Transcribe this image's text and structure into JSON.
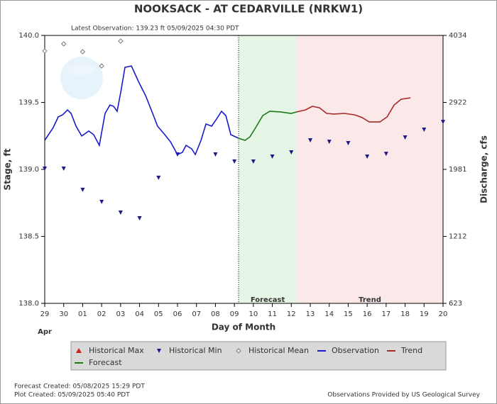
{
  "chart_data": {
    "type": "line",
    "title": "NOOKSACK - AT CEDARVILLE  (NRKW1)",
    "subtitle": "Latest Observation: 139.23 ft 05/09/2025 04:30 PDT",
    "xlabel": "Day of Month",
    "xlabel_month": "Apr",
    "ylabel": "Stage, ft",
    "y2label": "Discharge, cfs",
    "xlim": [
      0,
      21
    ],
    "xticks": [
      {
        "value": 0,
        "label": "29"
      },
      {
        "value": 1,
        "label": "30"
      },
      {
        "value": 2,
        "label": "01"
      },
      {
        "value": 3,
        "label": "02"
      },
      {
        "value": 4,
        "label": "03"
      },
      {
        "value": 5,
        "label": "04"
      },
      {
        "value": 6,
        "label": "05"
      },
      {
        "value": 7,
        "label": "06"
      },
      {
        "value": 8,
        "label": "07"
      },
      {
        "value": 9,
        "label": "08"
      },
      {
        "value": 10,
        "label": "09"
      },
      {
        "value": 11,
        "label": "10"
      },
      {
        "value": 12,
        "label": "11"
      },
      {
        "value": 13,
        "label": "12"
      },
      {
        "value": 14,
        "label": "13"
      },
      {
        "value": 15,
        "label": "14"
      },
      {
        "value": 16,
        "label": "15"
      },
      {
        "value": 17,
        "label": "16"
      },
      {
        "value": 18,
        "label": "17"
      },
      {
        "value": 19,
        "label": "18"
      },
      {
        "value": 20,
        "label": "19"
      },
      {
        "value": 21,
        "label": "20"
      }
    ],
    "ylim": [
      138,
      140
    ],
    "yticks": [
      {
        "value": 138,
        "label": "138.0"
      },
      {
        "value": 138.5,
        "label": "138.5"
      },
      {
        "value": 139,
        "label": "139.0"
      },
      {
        "value": 139.5,
        "label": "139.5"
      },
      {
        "value": 140,
        "label": "140.0"
      }
    ],
    "y2lim": [
      623,
      4034
    ],
    "y2ticks": [
      623,
      1212,
      1981,
      2922,
      4034
    ],
    "latest_x": 10.22,
    "regions": [
      {
        "label": "Forecast",
        "start": 10.22,
        "end": 13.29,
        "color": "#e6f6e6"
      },
      {
        "label": "Trend",
        "start": 13.29,
        "end": 21,
        "color": "#fbe9e9"
      }
    ],
    "series": [
      {
        "name": "Historical Max",
        "marker": "triangle-up",
        "color": "#cc2222",
        "x": [],
        "values": []
      },
      {
        "name": "Historical Min",
        "marker": "triangle-down",
        "color": "#1a1a8c",
        "x": [
          0,
          1,
          2,
          3,
          4,
          5,
          6,
          7,
          9,
          10,
          11,
          12,
          13,
          14,
          15,
          16,
          17,
          18,
          19,
          20,
          21
        ],
        "values": [
          139.005,
          139.005,
          138.847,
          138.757,
          138.677,
          138.635,
          138.937,
          139.111,
          139.111,
          139.058,
          139.058,
          139.095,
          139.127,
          139.217,
          139.206,
          139.196,
          139.095,
          139.116,
          139.238,
          139.296,
          139.354
        ]
      },
      {
        "name": "Historical Mean",
        "marker": "diamond",
        "color": "#777777",
        "x": [
          0,
          1,
          2,
          3,
          4
        ],
        "values": [
          139.884,
          139.937,
          139.878,
          139.772,
          139.958
        ]
      },
      {
        "name": "Observation",
        "marker": "line",
        "color": "#1a1acc",
        "x": [
          0,
          0.45,
          0.71,
          0.94,
          1.2,
          1.39,
          1.65,
          1.95,
          2.32,
          2.58,
          2.88,
          3.18,
          3.44,
          3.63,
          3.82,
          4.01,
          4.23,
          4.57,
          4.94,
          5.32,
          5.69,
          5.95,
          6.33,
          6.63,
          7.0,
          7.26,
          7.45,
          7.75,
          7.94,
          8.24,
          8.5,
          8.8,
          9.06,
          9.32,
          9.55,
          9.81,
          10.22
        ],
        "values": [
          139.217,
          139.312,
          139.392,
          139.407,
          139.444,
          139.418,
          139.323,
          139.249,
          139.286,
          139.259,
          139.18,
          139.418,
          139.481,
          139.471,
          139.434,
          139.577,
          139.762,
          139.772,
          139.656,
          139.55,
          139.418,
          139.323,
          139.259,
          139.206,
          139.111,
          139.127,
          139.18,
          139.153,
          139.111,
          139.217,
          139.339,
          139.323,
          139.376,
          139.434,
          139.402,
          139.259,
          139.233
        ]
      },
      {
        "name": "Trend",
        "marker": "line",
        "color": "#a52a2a",
        "x": [
          13.29,
          13.74,
          14.11,
          14.49,
          14.86,
          15.24,
          15.8,
          16.36,
          16.74,
          17.11,
          17.67,
          18.05,
          18.42,
          18.79,
          19.28
        ],
        "values": [
          139.429,
          139.444,
          139.471,
          139.46,
          139.418,
          139.413,
          139.418,
          139.407,
          139.386,
          139.354,
          139.354,
          139.392,
          139.481,
          139.524,
          139.534
        ]
      },
      {
        "name": "Forecast",
        "marker": "line",
        "color": "#1a7a1a",
        "x": [
          10.22,
          10.56,
          10.82,
          11.12,
          11.5,
          11.87,
          12.43,
          12.99,
          13.29
        ],
        "values": [
          139.233,
          139.217,
          139.243,
          139.312,
          139.402,
          139.434,
          139.429,
          139.418,
          139.429
        ]
      }
    ],
    "footer_left": [
      "Forecast Created: 05/08/2025 15:29 PDT",
      "Plot Created: 05/09/2025 05:40 PDT"
    ],
    "footer_right": "Observations Provided by US Geological Survey"
  }
}
